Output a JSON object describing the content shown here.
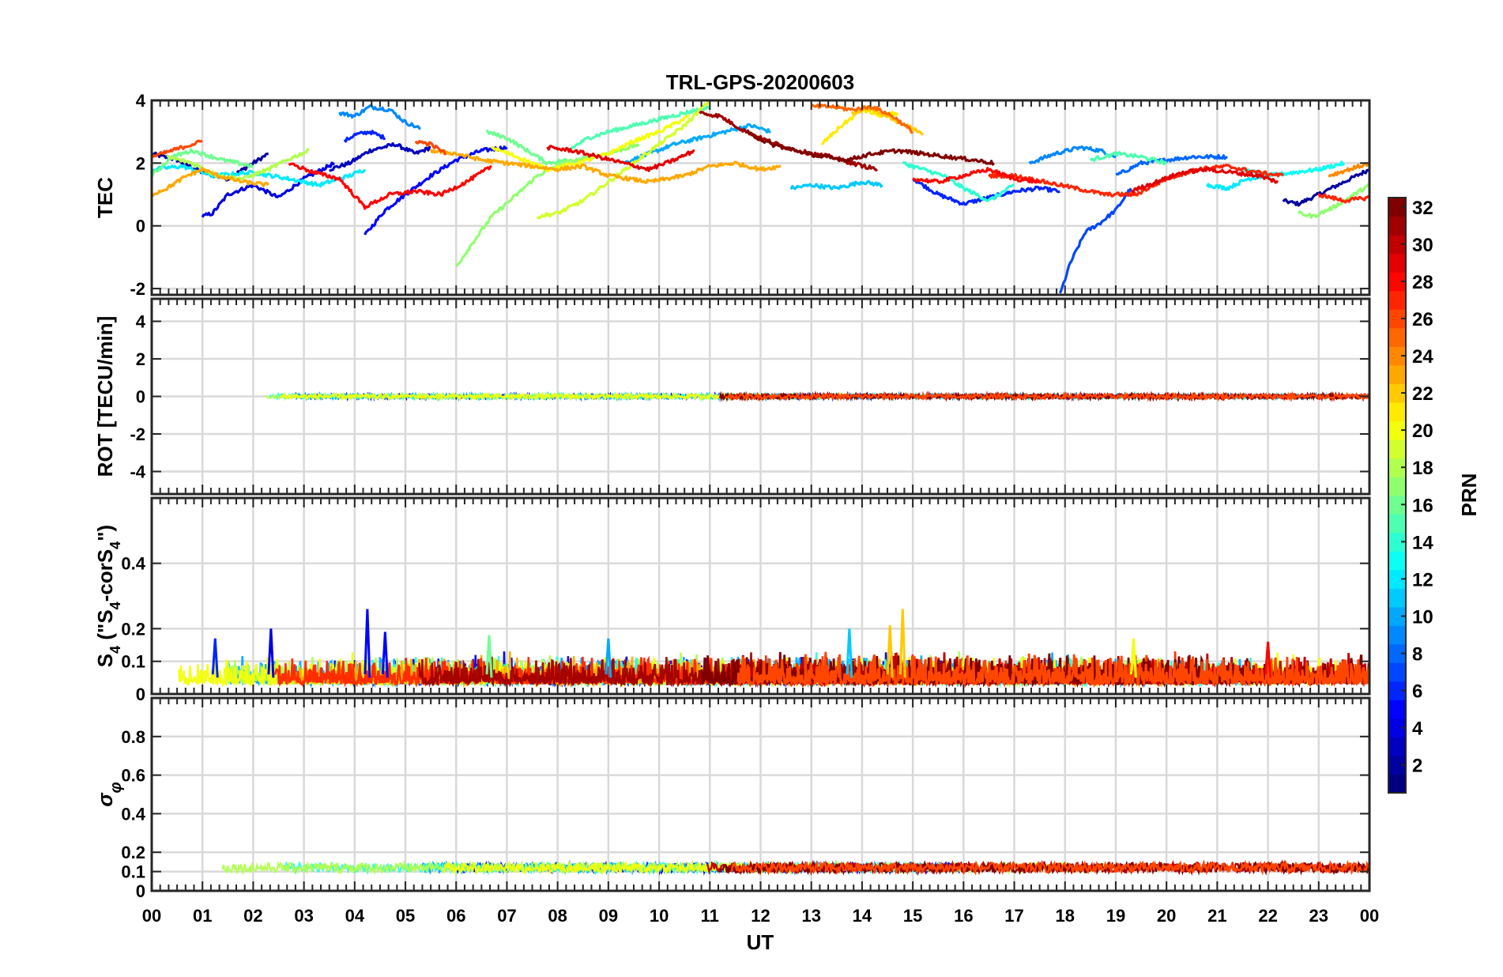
{
  "chart_data": {
    "type": "line",
    "title": "TRL-GPS-20200603",
    "xlabel": "UT",
    "xlim": [
      0,
      24
    ],
    "x_tick_labels": [
      "00",
      "01",
      "02",
      "03",
      "04",
      "05",
      "06",
      "07",
      "08",
      "09",
      "10",
      "11",
      "12",
      "13",
      "14",
      "15",
      "16",
      "17",
      "18",
      "19",
      "20",
      "21",
      "22",
      "23",
      "00"
    ],
    "grid": true,
    "colormap": "jet",
    "colorbar": {
      "label": "PRN",
      "range": [
        1,
        32
      ],
      "ticks": [
        "2",
        "4",
        "6",
        "8",
        "10",
        "12",
        "14",
        "16",
        "18",
        "20",
        "22",
        "24",
        "26",
        "28",
        "30",
        "32"
      ],
      "tick_values": [
        2,
        4,
        6,
        8,
        10,
        12,
        14,
        16,
        18,
        20,
        22,
        24,
        26,
        28,
        30,
        32
      ],
      "placement": "right"
    },
    "panels": [
      {
        "name": "tec",
        "ylabel": "TEC",
        "ylim": [
          -2.2,
          4
        ],
        "yticks": [
          "-2",
          "0",
          "2",
          "4"
        ],
        "ytick_values": [
          -2,
          0,
          2,
          4
        ],
        "series": [
          {
            "prn": 2,
            "x": [
              0.0,
              0.5,
              1.0,
              1.5,
              2.0,
              2.3
            ],
            "y": [
              2.3,
              2.1,
              1.7,
              1.5,
              2.0,
              2.3
            ]
          },
          {
            "prn": 2,
            "x": [
              22.3,
              22.6,
              23.0,
              23.5,
              24.0
            ],
            "y": [
              0.8,
              0.7,
              1.0,
              1.4,
              1.8
            ]
          },
          {
            "prn": 3,
            "x": [
              3.5,
              3.9,
              4.3,
              4.8,
              5.2,
              5.5
            ],
            "y": [
              1.8,
              2.0,
              2.4,
              2.6,
              2.3,
              2.5
            ]
          },
          {
            "prn": 4,
            "x": [
              1.0,
              1.2,
              1.5,
              2.0,
              2.5,
              3.0,
              3.6
            ],
            "y": [
              0.3,
              0.4,
              1.0,
              1.3,
              0.9,
              1.5,
              2.0
            ]
          },
          {
            "prn": 5,
            "x": [
              4.2,
              4.6,
              5.0,
              5.5,
              6.0,
              6.5,
              7.0
            ],
            "y": [
              -0.3,
              0.5,
              1.0,
              1.6,
              2.1,
              2.4,
              2.5
            ]
          },
          {
            "prn": 6,
            "x": [
              3.8,
              4.0,
              4.3,
              4.6
            ],
            "y": [
              2.7,
              2.9,
              3.0,
              2.8
            ]
          },
          {
            "prn": 6,
            "x": [
              15.0,
              15.5,
              16.0,
              16.5,
              17.0,
              17.5,
              17.9
            ],
            "y": [
              1.5,
              1.0,
              0.7,
              0.9,
              1.1,
              1.2,
              1.1
            ]
          },
          {
            "prn": 7,
            "x": [
              17.9,
              18.1,
              18.4,
              18.7,
              19.0,
              19.3
            ],
            "y": [
              -2.2,
              -1.2,
              -0.2,
              0.1,
              0.5,
              1.2
            ]
          },
          {
            "prn": 8,
            "x": [
              19.0,
              19.5,
              20.0,
              20.5,
              21.2
            ],
            "y": [
              1.6,
              2.0,
              2.1,
              2.2,
              2.2
            ]
          },
          {
            "prn": 9,
            "x": [
              3.7,
              4.0,
              4.3,
              4.7,
              5.0,
              5.3
            ],
            "y": [
              3.6,
              3.5,
              3.8,
              3.7,
              3.3,
              3.1
            ]
          },
          {
            "prn": 9,
            "x": [
              17.3,
              17.8,
              18.3,
              18.7,
              19.0
            ],
            "y": [
              2.0,
              2.3,
              2.5,
              2.4,
              2.2
            ]
          },
          {
            "prn": 10,
            "x": [
              9.3,
              9.8,
              10.3,
              10.8,
              11.3,
              11.8,
              12.2
            ],
            "y": [
              2.0,
              2.3,
              2.6,
              2.8,
              3.0,
              3.2,
              3.0
            ]
          },
          {
            "prn": 11,
            "x": [
              12.6,
              13.0,
              13.5,
              14.0,
              14.4
            ],
            "y": [
              1.2,
              1.3,
              1.2,
              1.4,
              1.3
            ]
          },
          {
            "prn": 12,
            "x": [
              0.0,
              0.6,
              1.2,
              2.0,
              2.7,
              3.3,
              3.9,
              4.2
            ],
            "y": [
              1.8,
              1.9,
              1.6,
              1.7,
              1.5,
              1.3,
              1.6,
              1.8
            ]
          },
          {
            "prn": 12,
            "x": [
              20.8,
              21.2,
              21.6,
              22.0
            ],
            "y": [
              1.3,
              1.2,
              1.5,
              1.6
            ]
          },
          {
            "prn": 13,
            "x": [
              21.5,
              22.0,
              22.5,
              23.0,
              23.5
            ],
            "y": [
              1.8,
              1.6,
              1.7,
              1.8,
              2.0
            ]
          },
          {
            "prn": 14,
            "x": [
              14.8,
              15.2,
              15.6,
              16.0,
              16.5,
              17.0
            ],
            "y": [
              2.0,
              1.8,
              1.6,
              1.2,
              0.8,
              1.3
            ]
          },
          {
            "prn": 15,
            "x": [
              8.2,
              8.6,
              9.0,
              9.5,
              10.0,
              10.5,
              11.0
            ],
            "y": [
              2.4,
              2.8,
              3.0,
              3.2,
              3.4,
              3.6,
              3.8
            ]
          },
          {
            "prn": 15,
            "x": [
              18.5,
              19.0,
              19.5,
              20.0
            ],
            "y": [
              2.1,
              2.3,
              2.2,
              2.0
            ]
          },
          {
            "prn": 16,
            "x": [
              0.0,
              0.4,
              0.8,
              1.4,
              2.0
            ],
            "y": [
              1.6,
              2.2,
              2.4,
              2.1,
              1.9
            ]
          },
          {
            "prn": 16,
            "x": [
              6.6,
              7.0,
              7.4,
              7.8,
              8.2
            ],
            "y": [
              3.0,
              2.8,
              2.4,
              2.0,
              2.1
            ]
          },
          {
            "prn": 17,
            "x": [
              6.0,
              6.3,
              6.7,
              7.2,
              7.6,
              8.1,
              8.7,
              9.2,
              9.6
            ],
            "y": [
              -1.3,
              -0.6,
              0.3,
              1.0,
              1.6,
              2.0,
              2.2,
              2.4,
              2.6
            ]
          },
          {
            "prn": 17,
            "x": [
              22.6,
              22.9,
              23.3,
              23.7,
              24.0
            ],
            "y": [
              0.4,
              0.3,
              0.6,
              1.0,
              1.3
            ]
          },
          {
            "prn": 18,
            "x": [
              0.3,
              0.8,
              1.3,
              1.8,
              2.3,
              2.8,
              3.1
            ],
            "y": [
              2.2,
              2.0,
              1.6,
              1.5,
              1.8,
              2.2,
              2.4
            ]
          },
          {
            "prn": 19,
            "x": [
              7.6,
              8.0,
              8.5,
              9.0,
              9.5,
              10.0,
              10.5,
              11.0
            ],
            "y": [
              0.3,
              0.4,
              0.8,
              1.4,
              2.0,
              2.6,
              3.2,
              4.0
            ]
          },
          {
            "prn": 20,
            "x": [
              6.7,
              7.2,
              7.8,
              8.4,
              9.0,
              9.5,
              10.0,
              10.6
            ],
            "y": [
              2.5,
              2.2,
              1.8,
              2.0,
              2.3,
              2.7,
              3.0,
              3.5
            ]
          },
          {
            "prn": 21,
            "x": [
              13.2,
              13.6,
              14.0,
              14.4,
              14.7
            ],
            "y": [
              2.6,
              3.2,
              3.7,
              3.5,
              3.6
            ]
          },
          {
            "prn": 22,
            "x": [
              13.8,
              14.2,
              14.6,
              15.0,
              15.2
            ],
            "y": [
              3.6,
              3.7,
              3.4,
              3.1,
              2.9
            ]
          },
          {
            "prn": 23,
            "x": [
              0.0,
              0.3,
              0.7,
              1.0,
              1.3,
              1.8,
              2.3
            ],
            "y": [
              1.0,
              1.2,
              1.6,
              1.8,
              1.6,
              1.4,
              1.3
            ]
          },
          {
            "prn": 23,
            "x": [
              5.5,
              6.0,
              6.5,
              7.0,
              7.5,
              8.0,
              8.5,
              9.0,
              9.8,
              10.5,
              11.0,
              11.5,
              12.0,
              12.4
            ],
            "y": [
              2.4,
              2.3,
              2.1,
              2.0,
              1.9,
              1.8,
              1.9,
              1.6,
              1.4,
              1.6,
              1.9,
              2.0,
              1.8,
              1.9
            ]
          },
          {
            "prn": 24,
            "x": [
              23.2,
              23.6,
              24.0
            ],
            "y": [
              1.6,
              1.8,
              2.0
            ]
          },
          {
            "prn": 25,
            "x": [
              13.0,
              13.4,
              13.8,
              14.2,
              14.6,
              15.0
            ],
            "y": [
              3.8,
              3.8,
              3.7,
              3.8,
              3.5,
              3.0
            ]
          },
          {
            "prn": 26,
            "x": [
              0.0,
              0.4,
              0.8,
              1.0
            ],
            "y": [
              2.2,
              2.4,
              2.6,
              2.7
            ]
          },
          {
            "prn": 26,
            "x": [
              5.2,
              5.5,
              5.8
            ],
            "y": [
              2.7,
              2.6,
              2.3
            ]
          },
          {
            "prn": 27,
            "x": [
              16.5,
              17.0,
              17.6,
              18.2,
              18.8,
              19.4,
              20.0,
              20.6,
              21.2,
              21.8,
              22.3
            ],
            "y": [
              1.6,
              1.6,
              1.4,
              1.2,
              1.0,
              1.0,
              1.5,
              1.8,
              1.9,
              1.7,
              1.6
            ]
          },
          {
            "prn": 27,
            "x": [
              23.0,
              23.5,
              24.0
            ],
            "y": [
              1.0,
              0.8,
              0.9
            ]
          },
          {
            "prn": 28,
            "x": [
              2.7,
              3.2,
              3.7,
              4.2,
              4.7,
              5.2,
              5.7,
              6.2,
              6.7
            ],
            "y": [
              2.0,
              1.7,
              1.5,
              0.6,
              1.0,
              1.1,
              1.0,
              1.4,
              1.9
            ]
          },
          {
            "prn": 28,
            "x": [
              15.0,
              15.5,
              16.0,
              16.5,
              17.0,
              17.5
            ],
            "y": [
              1.5,
              1.4,
              1.6,
              1.8,
              1.5,
              1.4
            ]
          },
          {
            "prn": 29,
            "x": [
              7.8,
              8.3,
              8.8,
              9.3,
              9.8,
              10.3,
              10.7
            ],
            "y": [
              2.5,
              2.4,
              2.2,
              2.0,
              1.8,
              2.1,
              2.4
            ]
          },
          {
            "prn": 29,
            "x": [
              19.3,
              19.8,
              20.3,
              20.8,
              21.3,
              21.8,
              22.2
            ],
            "y": [
              1.1,
              1.4,
              1.7,
              1.8,
              1.7,
              1.6,
              1.4
            ]
          },
          {
            "prn": 31,
            "x": [
              10.8,
              11.2,
              11.6,
              12.0,
              12.5,
              13.0,
              13.4,
              13.8,
              14.3
            ],
            "y": [
              3.6,
              3.5,
              3.1,
              2.8,
              2.5,
              2.3,
              2.2,
              2.0,
              1.8
            ]
          },
          {
            "prn": 32,
            "x": [
              11.7,
              12.2,
              12.7,
              13.2,
              13.7,
              14.2,
              14.7,
              15.2,
              15.7,
              16.2,
              16.6
            ],
            "y": [
              3.0,
              2.6,
              2.4,
              2.2,
              2.1,
              2.3,
              2.4,
              2.3,
              2.2,
              2.1,
              2.0
            ]
          }
        ]
      },
      {
        "name": "rot",
        "ylabel": "ROT [TECU/min]",
        "ylim": [
          -5.2,
          5.2
        ],
        "yticks": [
          "-4",
          "-2",
          "0",
          "2",
          "4"
        ],
        "ytick_values": [
          -4,
          -2,
          0,
          2,
          4
        ],
        "band": {
          "center": 0.0,
          "amplitude": 0.12
        }
      },
      {
        "name": "s4",
        "ylabel": "S4 (\"S4-corS4\")",
        "ylim": [
          0,
          0.6
        ],
        "yticks": [
          "0",
          "0.1",
          "0.2",
          "0.4"
        ],
        "ytick_values": [
          0,
          0.1,
          0.2,
          0.4
        ],
        "band": {
          "center": 0.05,
          "amplitude": 0.05
        },
        "spikes": [
          {
            "x": 1.25,
            "y": 0.17,
            "prn": 6
          },
          {
            "x": 2.35,
            "y": 0.2,
            "prn": 4
          },
          {
            "x": 4.25,
            "y": 0.26,
            "prn": 5
          },
          {
            "x": 4.6,
            "y": 0.19,
            "prn": 5
          },
          {
            "x": 6.65,
            "y": 0.18,
            "prn": 16
          },
          {
            "x": 9.0,
            "y": 0.17,
            "prn": 10
          },
          {
            "x": 13.75,
            "y": 0.2,
            "prn": 11
          },
          {
            "x": 14.55,
            "y": 0.21,
            "prn": 22
          },
          {
            "x": 14.8,
            "y": 0.26,
            "prn": 22
          },
          {
            "x": 19.35,
            "y": 0.17,
            "prn": 20
          },
          {
            "x": 22.0,
            "y": 0.16,
            "prn": 28
          }
        ]
      },
      {
        "name": "sigma",
        "ylabel": "σφ",
        "ylim": [
          0,
          1
        ],
        "yticks": [
          "0",
          "0.1",
          "0.2",
          "0.4",
          "0.6",
          "0.8"
        ],
        "ytick_values": [
          0,
          0.1,
          0.2,
          0.4,
          0.6,
          0.8
        ],
        "band": {
          "center": 0.12,
          "amplitude": 0.025
        }
      }
    ]
  }
}
